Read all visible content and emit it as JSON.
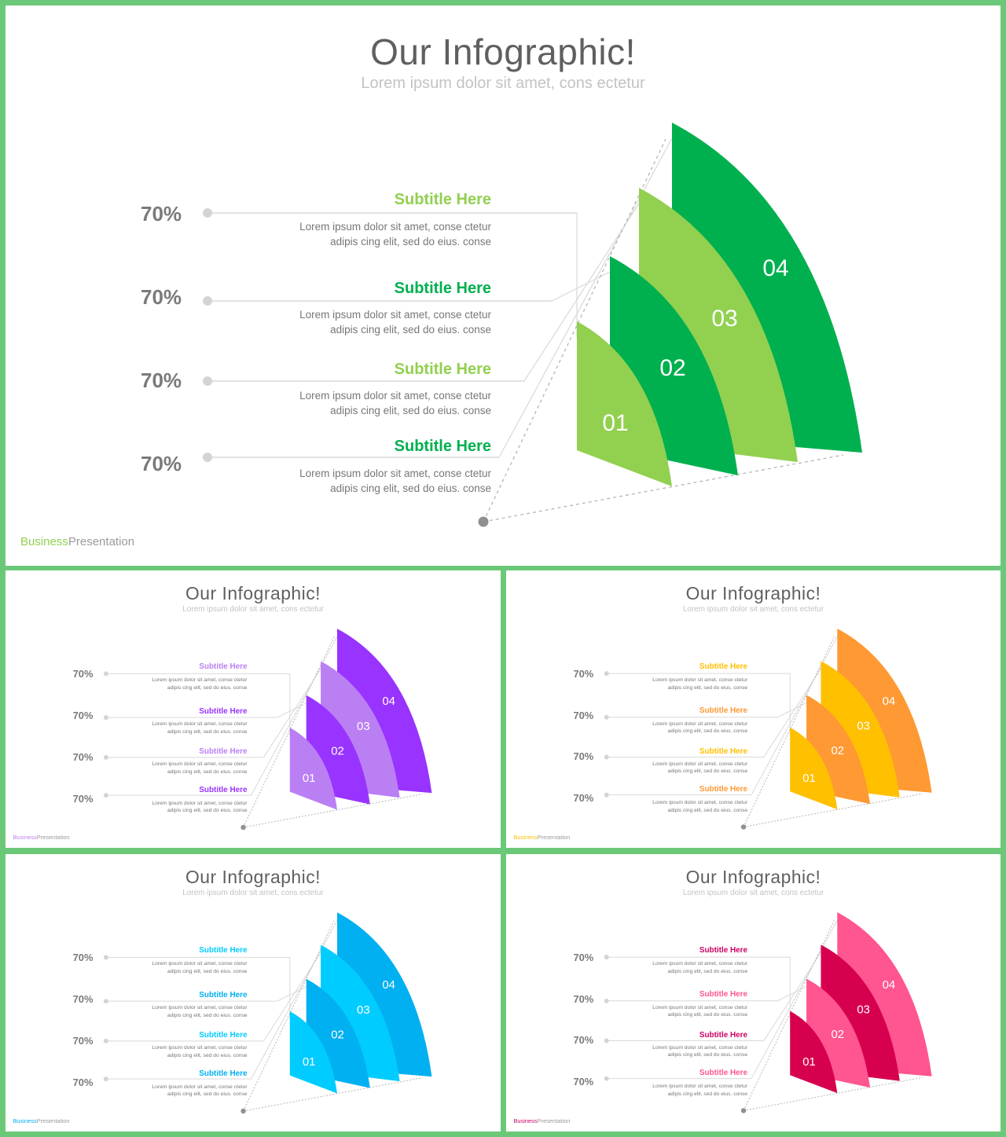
{
  "slides": [
    {
      "theme": "green",
      "title": "Our Infographic!",
      "subtitle": "Lorem ipsum dolor sit amet, cons ectetur",
      "colors": {
        "dark": "#00b04f",
        "light": "#92d050",
        "accent_light": "#92d050",
        "accent_dark": "#00b04f",
        "brand": "#92d050"
      },
      "items": [
        {
          "percent": "70%",
          "subtitle": "Subtitle Here",
          "line1": "Lorem ipsum dolor sit amet, conse ctetur",
          "line2": "adipis cing elit, sed do eius. conse"
        },
        {
          "percent": "70%",
          "subtitle": "Subtitle Here",
          "line1": "Lorem ipsum dolor sit amet, conse ctetur",
          "line2": "adipis cing elit, sed do eius. conse"
        },
        {
          "percent": "70%",
          "subtitle": "Subtitle Here",
          "line1": "Lorem ipsum dolor sit amet, conse ctetur",
          "line2": "adipis cing elit, sed do eius. conse"
        },
        {
          "percent": "70%",
          "subtitle": "Subtitle Here",
          "line1": "Lorem ipsum dolor sit amet, conse ctetur",
          "line2": "adipis cing elit, sed do eius. conse"
        }
      ],
      "segments": [
        "01",
        "02",
        "03",
        "04"
      ],
      "footer": {
        "brand": "Business",
        "rest": "Presentation"
      }
    },
    {
      "theme": "purple",
      "title": "Our Infographic!",
      "subtitle": "Lorem ipsum dolor sit amet, cons ectetur",
      "colors": {
        "dark": "#9933ff",
        "light": "#bb7ff4",
        "accent_light": "#bb7ff4",
        "accent_dark": "#9933ff",
        "brand": "#bb7ff4"
      },
      "items": [
        {
          "percent": "70%",
          "subtitle": "Subtitle Here",
          "line1": "Lorem ipsum dolor sit amet, conse ctetur",
          "line2": "adipis cing elit, sed do eius. conse"
        },
        {
          "percent": "70%",
          "subtitle": "Subtitle Here",
          "line1": "Lorem ipsum dolor sit amet, conse ctetur",
          "line2": "adipis cing elit, sed do eius. conse"
        },
        {
          "percent": "70%",
          "subtitle": "Subtitle Here",
          "line1": "Lorem ipsum dolor sit amet, conse ctetur",
          "line2": "adipis cing elit, sed do eius. conse"
        },
        {
          "percent": "70%",
          "subtitle": "Subtitle Here",
          "line1": "Lorem ipsum dolor sit amet, conse ctetur",
          "line2": "adipis cing elit, sed do eius. conse"
        }
      ],
      "segments": [
        "01",
        "02",
        "03",
        "04"
      ],
      "footer": {
        "brand": "Business",
        "rest": "Presentation"
      }
    },
    {
      "theme": "orange",
      "title": "Our Infographic!",
      "subtitle": "Lorem ipsum dolor sit amet, cons ectetur",
      "colors": {
        "dark": "#ff9933",
        "light": "#ffc000",
        "accent_light": "#ffc000",
        "accent_dark": "#ff9933",
        "brand": "#ffc000"
      },
      "items": [
        {
          "percent": "70%",
          "subtitle": "Subtitle Here",
          "line1": "Lorem ipsum dolor sit amet, conse ctetur",
          "line2": "adipis cing elit, sed do eius. conse"
        },
        {
          "percent": "70%",
          "subtitle": "Subtitle Here",
          "line1": "Lorem ipsum dolor sit amet, conse ctetur",
          "line2": "adipis cing elit, sed do eius. conse"
        },
        {
          "percent": "70%",
          "subtitle": "Subtitle Here",
          "line1": "Lorem ipsum dolor sit amet, conse ctetur",
          "line2": "adipis cing elit, sed do eius. conse"
        },
        {
          "percent": "70%",
          "subtitle": "Subtitle Here",
          "line1": "Lorem ipsum dolor sit amet, conse ctetur",
          "line2": "adipis cing elit, sed do eius. conse"
        }
      ],
      "segments": [
        "01",
        "02",
        "03",
        "04"
      ],
      "footer": {
        "brand": "Business",
        "rest": "Presentation"
      }
    },
    {
      "theme": "blue",
      "title": "Our Infographic!",
      "subtitle": "Lorem ipsum dolor sit amet, cons ectetur",
      "colors": {
        "dark": "#00b0f0",
        "light": "#00ccff",
        "accent_light": "#00ccff",
        "accent_dark": "#00b0f0",
        "brand": "#00b0f0"
      },
      "items": [
        {
          "percent": "70%",
          "subtitle": "Subtitle Here",
          "line1": "Lorem ipsum dolor sit amet, conse ctetur",
          "line2": "adipis cing elit, sed do eius. conse"
        },
        {
          "percent": "70%",
          "subtitle": "Subtitle Here",
          "line1": "Lorem ipsum dolor sit amet, conse ctetur",
          "line2": "adipis cing elit, sed do eius. conse"
        },
        {
          "percent": "70%",
          "subtitle": "Subtitle Here",
          "line1": "Lorem ipsum dolor sit amet, conse ctetur",
          "line2": "adipis cing elit, sed do eius. conse"
        },
        {
          "percent": "70%",
          "subtitle": "Subtitle Here",
          "line1": "Lorem ipsum dolor sit amet, conse ctetur",
          "line2": "adipis cing elit, sed do eius. conse"
        }
      ],
      "segments": [
        "01",
        "02",
        "03",
        "04"
      ],
      "footer": {
        "brand": "Business",
        "rest": "Presentation"
      }
    },
    {
      "theme": "pink",
      "title": "Our Infographic!",
      "subtitle": "Lorem ipsum dolor sit amet, cons ectetur",
      "colors": {
        "dark": "#ff5590",
        "light": "#d6004f",
        "accent_light": "#cc0066",
        "accent_dark": "#ff5590",
        "brand": "#cc0066"
      },
      "items": [
        {
          "percent": "70%",
          "subtitle": "Subtitle Here",
          "line1": "Lorem ipsum dolor sit amet, conse ctetur",
          "line2": "adipis cing elit, sed do eius. conse"
        },
        {
          "percent": "70%",
          "subtitle": "Subtitle Here",
          "line1": "Lorem ipsum dolor sit amet, conse ctetur",
          "line2": "adipis cing elit, sed do eius. conse"
        },
        {
          "percent": "70%",
          "subtitle": "Subtitle Here",
          "line1": "Lorem ipsum dolor sit amet, conse ctetur",
          "line2": "adipis cing elit, sed do eius. conse"
        },
        {
          "percent": "70%",
          "subtitle": "Subtitle Here",
          "line1": "Lorem ipsum dolor sit amet, conse ctetur",
          "line2": "adipis cing elit, sed do eius. conse"
        }
      ],
      "segments": [
        "01",
        "02",
        "03",
        "04"
      ],
      "footer": {
        "brand": "Business",
        "rest": "Presentation"
      }
    }
  ]
}
